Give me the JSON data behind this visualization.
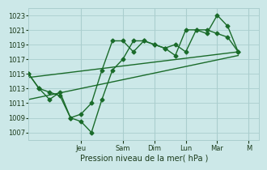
{
  "background_color": "#cce8e8",
  "grid_color": "#aacece",
  "line_color": "#1a6b2a",
  "text_color": "#1a3a1a",
  "xlabel_text": "Pression niveau de la mer( hPa )",
  "ylim": [
    1006.0,
    1024.0
  ],
  "xlim": [
    0.0,
    11.0
  ],
  "yticks": [
    1007,
    1009,
    1011,
    1013,
    1015,
    1017,
    1019,
    1021,
    1023
  ],
  "x_day_labels": [
    "Jeu",
    "Sam",
    "Dim",
    "Lun",
    "Mar",
    "M"
  ],
  "x_day_positions": [
    2.5,
    4.5,
    6.0,
    7.5,
    9.0,
    10.5
  ],
  "series1_x": [
    0.0,
    0.5,
    1.0,
    1.5,
    2.0,
    2.5,
    3.0,
    3.5,
    4.0,
    4.5,
    5.0,
    5.5,
    6.0,
    6.5,
    7.0,
    7.5,
    8.0,
    8.5,
    9.0,
    9.5,
    10.0
  ],
  "series1_y": [
    1015.0,
    1013.0,
    1012.5,
    1012.0,
    1009.0,
    1008.5,
    1007.0,
    1011.5,
    1015.5,
    1017.0,
    1019.5,
    1019.5,
    1019.0,
    1018.5,
    1019.0,
    1018.0,
    1021.0,
    1021.0,
    1020.5,
    1020.0,
    1018.0
  ],
  "series2_x": [
    0.0,
    0.5,
    1.0,
    1.5,
    2.0,
    2.5,
    3.0,
    3.5,
    4.0,
    4.5,
    5.0,
    5.5,
    6.0,
    6.5,
    7.0,
    7.5,
    8.0,
    8.5,
    9.0,
    9.5,
    10.0
  ],
  "series2_y": [
    1015.0,
    1013.0,
    1011.5,
    1012.5,
    1009.0,
    1009.5,
    1011.0,
    1015.5,
    1019.5,
    1019.5,
    1018.0,
    1019.5,
    1019.0,
    1018.5,
    1017.5,
    1021.0,
    1021.0,
    1020.5,
    1023.0,
    1021.5,
    1018.0
  ],
  "trend1_x": [
    0.0,
    10.0
  ],
  "trend1_y": [
    1014.5,
    1018.0
  ],
  "trend2_x": [
    0.0,
    10.0
  ],
  "trend2_y": [
    1011.5,
    1017.5
  ],
  "marker_size": 2.5,
  "line_width": 1.0,
  "xlabel_fontsize": 7.0,
  "tick_fontsize": 6.0
}
